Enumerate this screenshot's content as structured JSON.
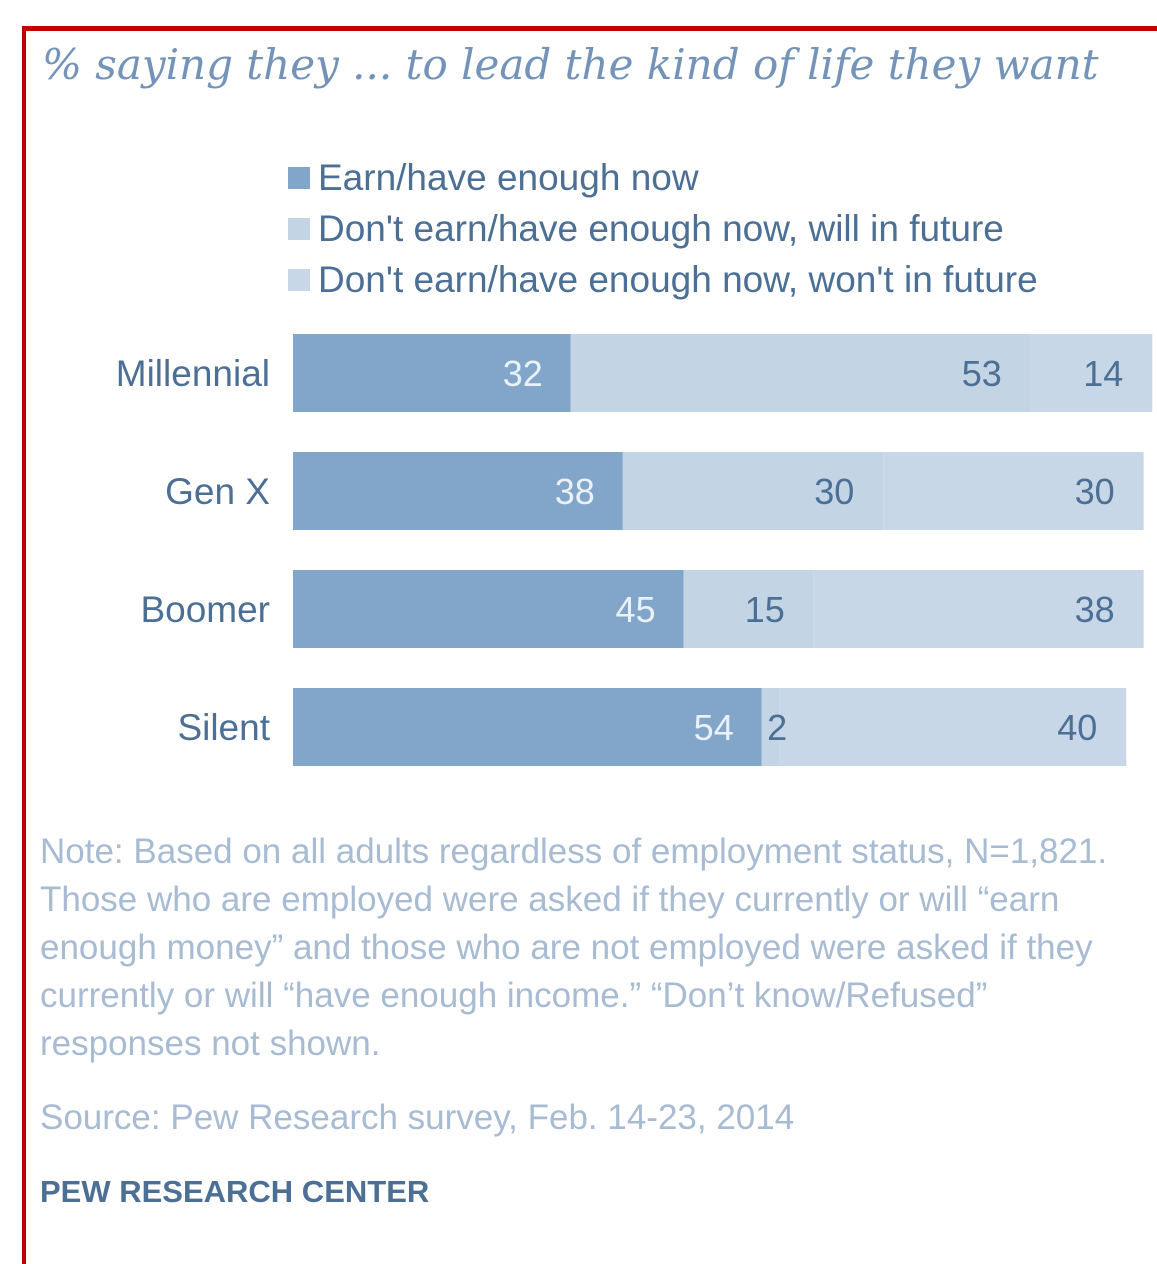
{
  "colors": {
    "frame": "#c00000",
    "earn_now": "#81a6c9",
    "will_future": "#c3d4e5",
    "wont_future": "#c8d7e7",
    "value_on_dark": "#eaf1f8",
    "value_on_light": "#4b6f95",
    "category_text": "#4b6f95",
    "subtitle_text": "#7393b8",
    "note_text": "#a7bbd2",
    "brand_text": "#4b6f95"
  },
  "subtitle": "% saying they ... to lead the kind of life they want",
  "legend": [
    {
      "label": "Earn/have enough now",
      "color": "#81a6c9"
    },
    {
      "label": "Don't earn/have enough now, will in future",
      "color": "#c3d4e5"
    },
    {
      "label": "Don't earn/have  enough now, won't in future",
      "color": "#c8d7e7"
    }
  ],
  "chart_data": {
    "type": "bar",
    "orientation": "horizontal",
    "stacked": true,
    "categories": [
      "Millennial",
      "Gen X",
      "Boomer",
      "Silent"
    ],
    "series": [
      {
        "name": "Earn/have enough now",
        "values": [
          32,
          38,
          45,
          54
        ]
      },
      {
        "name": "Don't earn/have enough now, will in future",
        "values": [
          53,
          30,
          15,
          2
        ]
      },
      {
        "name": "Don't earn/have  enough now, won't in future",
        "values": [
          14,
          30,
          38,
          40
        ]
      }
    ],
    "xlim": [
      0,
      100
    ],
    "grid": false,
    "legend_position": "top"
  },
  "note": "Note: Based on all adults regardless of employment status, N=1,821. Those who are employed were asked if they currently or will “earn enough money” and those who are not employed were asked if they currently or will “have enough income.” “Don’t know/Refused” responses not shown.",
  "source": "Source: Pew Research survey, Feb. 14-23, 2014",
  "brand": "PEW RESEARCH CENTER"
}
